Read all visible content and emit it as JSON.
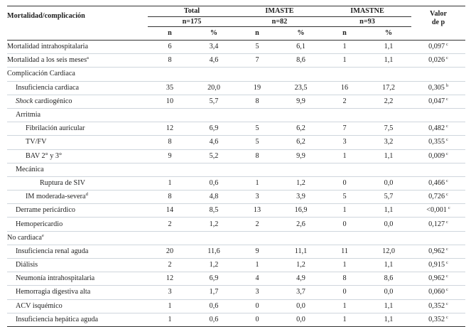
{
  "header": {
    "row_label": "Mortalidad/complicación",
    "groups": [
      {
        "name": "Total",
        "n": "n=175"
      },
      {
        "name": "IMASTE",
        "n": "n=82"
      },
      {
        "name": "IMASTNE",
        "n": "n=93"
      }
    ],
    "pvalue_line1": "Valor",
    "pvalue_line2": "de p",
    "sub_n": "n",
    "sub_pct": "%"
  },
  "rows": [
    {
      "label": "Mortalidad intrahospitalaria",
      "indent": 0,
      "t_n": "6",
      "t_p": "3,4",
      "a_n": "5",
      "a_p": "6,1",
      "b_n": "1",
      "b_p": "1,1",
      "pv": "0,097",
      "pv_sup": "c"
    },
    {
      "label": "Mortalidad a los seis meses",
      "label_sup": "a",
      "indent": 0,
      "t_n": "8",
      "t_p": "4,6",
      "a_n": "7",
      "a_p": "8,6",
      "b_n": "1",
      "b_p": "1,1",
      "pv": "0,026",
      "pv_sup": "c"
    },
    {
      "label": "Complicación Cardiaca",
      "indent": 0,
      "section": true
    },
    {
      "label": "Insuficiencia cardiaca",
      "indent": 1,
      "t_n": "35",
      "t_p": "20,0",
      "a_n": "19",
      "a_p": "23,5",
      "b_n": "16",
      "b_p": "17,2",
      "pv": "0,305",
      "pv_sup": "b"
    },
    {
      "label_italic": "Shock",
      "label": " cardiogénico",
      "indent": 1,
      "t_n": "10",
      "t_p": "5,7",
      "a_n": "8",
      "a_p": "9,9",
      "b_n": "2",
      "b_p": "2,2",
      "pv": "0,047",
      "pv_sup": "c"
    },
    {
      "label": "Arritmia",
      "indent": 1,
      "section": true
    },
    {
      "label": "Fibrilación auricular",
      "indent": 2,
      "t_n": "12",
      "t_p": "6,9",
      "a_n": "5",
      "a_p": "6,2",
      "b_n": "7",
      "b_p": "7,5",
      "pv": "0,482",
      "pv_sup": "c"
    },
    {
      "label": "TV/FV",
      "indent": 2,
      "t_n": "8",
      "t_p": "4,6",
      "a_n": "5",
      "a_p": "6,2",
      "b_n": "3",
      "b_p": "3,2",
      "pv": "0,355",
      "pv_sup": "c"
    },
    {
      "label": "BAV 2° y 3°",
      "indent": 2,
      "t_n": "9",
      "t_p": "5,2",
      "a_n": "8",
      "a_p": "9,9",
      "b_n": "1",
      "b_p": "1,1",
      "pv": "0,009",
      "pv_sup": "c"
    },
    {
      "label": "Mecánica",
      "indent": 1,
      "section": true
    },
    {
      "label": "Ruptura de SIV",
      "indent": 3,
      "t_n": "1",
      "t_p": "0,6",
      "a_n": "1",
      "a_p": "1,2",
      "b_n": "0",
      "b_p": "0,0",
      "pv": "0,466",
      "pv_sup": "c"
    },
    {
      "label": "IM moderada-severa",
      "label_sup": "d",
      "indent": 2,
      "t_n": "8",
      "t_p": "4,8",
      "a_n": "3",
      "a_p": "3,9",
      "b_n": "5",
      "b_p": "5,7",
      "pv": "0,726",
      "pv_sup": "c"
    },
    {
      "label": "Derrame pericárdico",
      "indent": 1,
      "t_n": "14",
      "t_p": "8,5",
      "a_n": "13",
      "a_p": "16,9",
      "b_n": "1",
      "b_p": "1,1",
      "pv": "<0,001",
      "pv_sup": "c"
    },
    {
      "label": "Hemopericardio",
      "indent": 1,
      "t_n": "2",
      "t_p": "1,2",
      "a_n": "2",
      "a_p": "2,6",
      "b_n": "0",
      "b_p": "0,0",
      "pv": "0,127",
      "pv_sup": "c"
    },
    {
      "label": "No cardiaca",
      "label_sup": "e",
      "indent": 0,
      "section": true
    },
    {
      "label": "Insuficiencia renal aguda",
      "indent": 1,
      "t_n": "20",
      "t_p": "11,6",
      "a_n": "9",
      "a_p": "11,1",
      "b_n": "11",
      "b_p": "12,0",
      "pv": "0,962",
      "pv_sup": "c"
    },
    {
      "label": "Diálisis",
      "indent": 1,
      "t_n": "2",
      "t_p": "1,2",
      "a_n": "1",
      "a_p": "1,2",
      "b_n": "1",
      "b_p": "1,1",
      "pv": "0,915",
      "pv_sup": "c"
    },
    {
      "label": "Neumonía intrahospitalaria",
      "indent": 1,
      "t_n": "12",
      "t_p": "6,9",
      "a_n": "4",
      "a_p": "4,9",
      "b_n": "8",
      "b_p": "8,6",
      "pv": "0,962",
      "pv_sup": "c"
    },
    {
      "label": "Hemorragia digestiva alta",
      "indent": 1,
      "t_n": "3",
      "t_p": "1,7",
      "a_n": "3",
      "a_p": "3,7",
      "b_n": "0",
      "b_p": "0,0",
      "pv": "0,060",
      "pv_sup": "c"
    },
    {
      "label": "ACV isquémico",
      "indent": 1,
      "t_n": "1",
      "t_p": "0,6",
      "a_n": "0",
      "a_p": "0,0",
      "b_n": "1",
      "b_p": "1,1",
      "pv": "0,352",
      "pv_sup": "c"
    },
    {
      "label": "Insuficiencia hepática aguda",
      "indent": 1,
      "t_n": "1",
      "t_p": "0,6",
      "a_n": "0",
      "a_p": "0,0",
      "b_n": "1",
      "b_p": "1,1",
      "pv": "0,352",
      "pv_sup": "c"
    }
  ]
}
